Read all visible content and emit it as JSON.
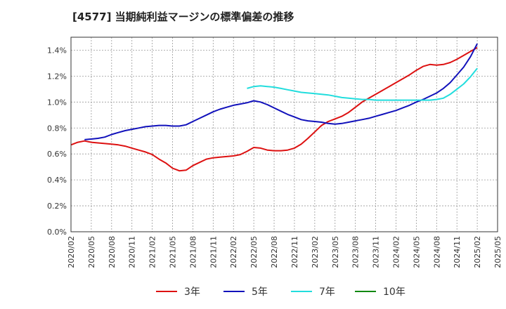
{
  "chart_data": {
    "type": "line",
    "title": "[4577]  当期純利益マージンの標準偏差の推移",
    "xlabel": "",
    "ylabel": "",
    "ylim": [
      0,
      1.5
    ],
    "xlim": [
      "2020/02",
      "2025/05"
    ],
    "grid": true,
    "legend_position": "bottom",
    "x_ticks": [
      "2020/02",
      "2020/05",
      "2020/08",
      "2020/11",
      "2021/02",
      "2021/05",
      "2021/08",
      "2021/11",
      "2022/02",
      "2022/05",
      "2022/08",
      "2022/11",
      "2023/02",
      "2023/05",
      "2023/08",
      "2023/11",
      "2024/02",
      "2024/05",
      "2024/08",
      "2024/11",
      "2025/02",
      "2025/05"
    ],
    "y_ticks": [
      "0.0%",
      "0.2%",
      "0.4%",
      "0.6%",
      "0.8%",
      "1.0%",
      "1.2%",
      "1.4%"
    ],
    "y_tick_values": [
      0,
      0.2,
      0.4,
      0.6,
      0.8,
      1.0,
      1.2,
      1.4
    ],
    "series": [
      {
        "name": "3年",
        "color": "#dd1111",
        "points": [
          [
            "2020/02",
            0.67
          ],
          [
            "2020/03",
            0.69
          ],
          [
            "2020/04",
            0.7
          ],
          [
            "2020/05",
            0.69
          ],
          [
            "2020/06",
            0.685
          ],
          [
            "2020/07",
            0.68
          ],
          [
            "2020/08",
            0.675
          ],
          [
            "2020/09",
            0.67
          ],
          [
            "2020/10",
            0.66
          ],
          [
            "2020/11",
            0.645
          ],
          [
            "2020/12",
            0.63
          ],
          [
            "2021/01",
            0.615
          ],
          [
            "2021/02",
            0.595
          ],
          [
            "2021/03",
            0.56
          ],
          [
            "2021/04",
            0.53
          ],
          [
            "2021/05",
            0.49
          ],
          [
            "2021/06",
            0.47
          ],
          [
            "2021/07",
            0.475
          ],
          [
            "2021/08",
            0.51
          ],
          [
            "2021/09",
            0.535
          ],
          [
            "2021/10",
            0.56
          ],
          [
            "2021/11",
            0.57
          ],
          [
            "2021/12",
            0.575
          ],
          [
            "2022/01",
            0.58
          ],
          [
            "2022/02",
            0.585
          ],
          [
            "2022/03",
            0.595
          ],
          [
            "2022/04",
            0.62
          ],
          [
            "2022/05",
            0.65
          ],
          [
            "2022/06",
            0.645
          ],
          [
            "2022/07",
            0.63
          ],
          [
            "2022/08",
            0.625
          ],
          [
            "2022/09",
            0.625
          ],
          [
            "2022/10",
            0.63
          ],
          [
            "2022/11",
            0.645
          ],
          [
            "2022/12",
            0.675
          ],
          [
            "2023/01",
            0.72
          ],
          [
            "2023/02",
            0.77
          ],
          [
            "2023/03",
            0.82
          ],
          [
            "2023/04",
            0.85
          ],
          [
            "2023/05",
            0.87
          ],
          [
            "2023/06",
            0.89
          ],
          [
            "2023/07",
            0.92
          ],
          [
            "2023/08",
            0.96
          ],
          [
            "2023/09",
            1.0
          ],
          [
            "2023/10",
            1.03
          ],
          [
            "2023/11",
            1.06
          ],
          [
            "2023/12",
            1.09
          ],
          [
            "2024/01",
            1.12
          ],
          [
            "2024/02",
            1.15
          ],
          [
            "2024/03",
            1.18
          ],
          [
            "2024/04",
            1.21
          ],
          [
            "2024/05",
            1.245
          ],
          [
            "2024/06",
            1.275
          ],
          [
            "2024/07",
            1.29
          ],
          [
            "2024/08",
            1.285
          ],
          [
            "2024/09",
            1.29
          ],
          [
            "2024/10",
            1.305
          ],
          [
            "2024/11",
            1.33
          ],
          [
            "2024/12",
            1.36
          ],
          [
            "2025/01",
            1.39
          ],
          [
            "2025/02",
            1.42
          ]
        ]
      },
      {
        "name": "5年",
        "color": "#1111bb",
        "points": [
          [
            "2020/04",
            0.71
          ],
          [
            "2020/05",
            0.715
          ],
          [
            "2020/06",
            0.72
          ],
          [
            "2020/07",
            0.73
          ],
          [
            "2020/08",
            0.75
          ],
          [
            "2020/09",
            0.765
          ],
          [
            "2020/10",
            0.78
          ],
          [
            "2020/11",
            0.79
          ],
          [
            "2020/12",
            0.8
          ],
          [
            "2021/01",
            0.81
          ],
          [
            "2021/02",
            0.815
          ],
          [
            "2021/03",
            0.82
          ],
          [
            "2021/04",
            0.82
          ],
          [
            "2021/05",
            0.815
          ],
          [
            "2021/06",
            0.815
          ],
          [
            "2021/07",
            0.825
          ],
          [
            "2021/08",
            0.85
          ],
          [
            "2021/09",
            0.875
          ],
          [
            "2021/10",
            0.9
          ],
          [
            "2021/11",
            0.925
          ],
          [
            "2021/12",
            0.945
          ],
          [
            "2022/01",
            0.96
          ],
          [
            "2022/02",
            0.975
          ],
          [
            "2022/03",
            0.985
          ],
          [
            "2022/04",
            0.995
          ],
          [
            "2022/05",
            1.01
          ],
          [
            "2022/06",
            1.0
          ],
          [
            "2022/07",
            0.98
          ],
          [
            "2022/08",
            0.955
          ],
          [
            "2022/09",
            0.93
          ],
          [
            "2022/10",
            0.905
          ],
          [
            "2022/11",
            0.885
          ],
          [
            "2022/12",
            0.865
          ],
          [
            "2023/01",
            0.855
          ],
          [
            "2023/02",
            0.85
          ],
          [
            "2023/03",
            0.845
          ],
          [
            "2023/04",
            0.835
          ],
          [
            "2023/05",
            0.83
          ],
          [
            "2023/06",
            0.835
          ],
          [
            "2023/07",
            0.845
          ],
          [
            "2023/08",
            0.855
          ],
          [
            "2023/09",
            0.865
          ],
          [
            "2023/10",
            0.875
          ],
          [
            "2023/11",
            0.89
          ],
          [
            "2023/12",
            0.905
          ],
          [
            "2024/01",
            0.92
          ],
          [
            "2024/02",
            0.935
          ],
          [
            "2024/03",
            0.955
          ],
          [
            "2024/04",
            0.975
          ],
          [
            "2024/05",
            1.0
          ],
          [
            "2024/06",
            1.02
          ],
          [
            "2024/07",
            1.045
          ],
          [
            "2024/08",
            1.07
          ],
          [
            "2024/09",
            1.105
          ],
          [
            "2024/10",
            1.15
          ],
          [
            "2024/11",
            1.21
          ],
          [
            "2024/12",
            1.27
          ],
          [
            "2025/01",
            1.35
          ],
          [
            "2025/02",
            1.45
          ]
        ]
      },
      {
        "name": "7年",
        "color": "#22dddd",
        "points": [
          [
            "2022/04",
            1.105
          ],
          [
            "2022/05",
            1.12
          ],
          [
            "2022/06",
            1.125
          ],
          [
            "2022/07",
            1.12
          ],
          [
            "2022/08",
            1.115
          ],
          [
            "2022/09",
            1.105
          ],
          [
            "2022/10",
            1.095
          ],
          [
            "2022/11",
            1.085
          ],
          [
            "2022/12",
            1.075
          ],
          [
            "2023/01",
            1.07
          ],
          [
            "2023/02",
            1.065
          ],
          [
            "2023/03",
            1.06
          ],
          [
            "2023/04",
            1.055
          ],
          [
            "2023/05",
            1.045
          ],
          [
            "2023/06",
            1.035
          ],
          [
            "2023/07",
            1.03
          ],
          [
            "2023/08",
            1.025
          ],
          [
            "2023/09",
            1.02
          ],
          [
            "2023/10",
            1.02
          ],
          [
            "2023/11",
            1.015
          ],
          [
            "2023/12",
            1.015
          ],
          [
            "2024/01",
            1.015
          ],
          [
            "2024/02",
            1.015
          ],
          [
            "2024/03",
            1.015
          ],
          [
            "2024/04",
            1.015
          ],
          [
            "2024/05",
            1.015
          ],
          [
            "2024/06",
            1.015
          ],
          [
            "2024/07",
            1.015
          ],
          [
            "2024/08",
            1.02
          ],
          [
            "2024/09",
            1.03
          ],
          [
            "2024/10",
            1.06
          ],
          [
            "2024/11",
            1.1
          ],
          [
            "2024/12",
            1.14
          ],
          [
            "2025/01",
            1.195
          ],
          [
            "2025/02",
            1.26
          ]
        ]
      },
      {
        "name": "10年",
        "color": "#118811",
        "points": []
      }
    ]
  }
}
